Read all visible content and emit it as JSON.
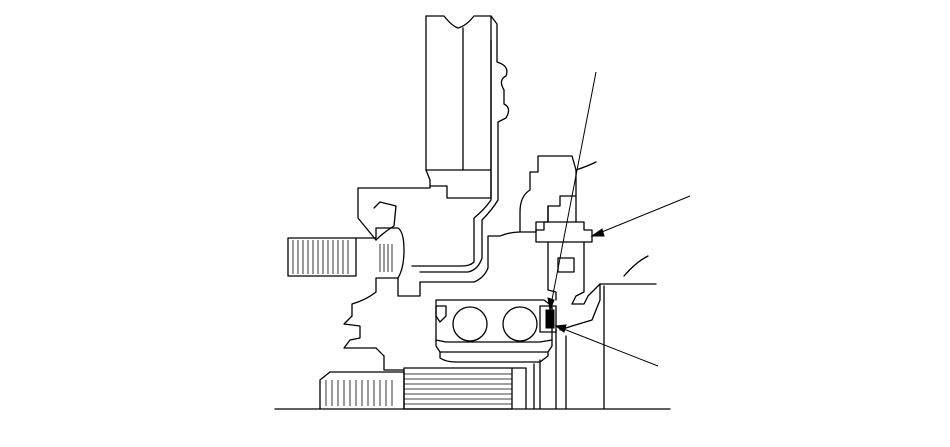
{
  "figure": {
    "subject": "wheel-hub-bearing-cross-section",
    "line_color": "#000000",
    "background_color": "#ffffff"
  },
  "callouts": [
    {
      "target": "wheel-bearing-seal"
    },
    {
      "target": "hub-nut"
    },
    {
      "target": "bearing-snap-ring"
    }
  ]
}
